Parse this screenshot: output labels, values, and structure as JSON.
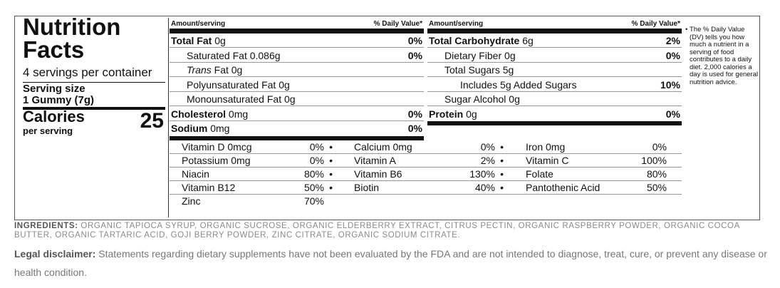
{
  "label": {
    "title": "Nutrition Facts",
    "servings": "4 servings per container",
    "serving_size_label": "Serving size",
    "serving_size": "1 Gummy (7g)",
    "calories_label": "Calories",
    "calories_sub": "per serving",
    "calories": 25,
    "columns": [
      {
        "amount_header": "Amount/serving",
        "dv_header": "% Daily Value*",
        "rows": [
          {
            "label": "Total Fat",
            "amount": "0g",
            "dv": "0%",
            "bold": true,
            "indent": 0
          },
          {
            "label": "Saturated Fat",
            "amount": "0.086g",
            "dv": "0%",
            "bold": false,
            "indent": 1
          },
          {
            "prefix_italic": "Trans",
            "label": "Fat",
            "amount": "0g",
            "bold": false,
            "indent": 1
          },
          {
            "label": "Polyunsaturated Fat",
            "amount": "0g",
            "bold": false,
            "indent": 1
          },
          {
            "label": "Monounsaturated Fat",
            "amount": "0g",
            "bold": false,
            "indent": 1
          },
          {
            "label": "Cholesterol",
            "amount": "0mg",
            "dv": "0%",
            "bold": true,
            "indent": 0
          },
          {
            "label": "Sodium",
            "amount": "0mg",
            "dv": "0%",
            "bold": true,
            "indent": 0
          }
        ]
      },
      {
        "amount_header": "Amount/serving",
        "dv_header": "% Daily Value*",
        "rows": [
          {
            "label": "Total Carbohydrate",
            "amount": "6g",
            "dv": "2%",
            "bold": true,
            "indent": 0
          },
          {
            "label": "Dietary Fiber",
            "amount": "0g",
            "dv": "0%",
            "bold": false,
            "indent": 1
          },
          {
            "label": "Total Sugars",
            "amount": "5g",
            "bold": false,
            "indent": 1
          },
          {
            "label": "Includes 5g Added Sugars",
            "dv": "10%",
            "bold": false,
            "indent": 2
          },
          {
            "label": "Sugar Alcohol",
            "amount": "0g",
            "bold": false,
            "indent": 1
          },
          {
            "label": "Protein",
            "amount": "0g",
            "dv": "0%",
            "bold": true,
            "indent": 0
          }
        ]
      }
    ],
    "footnote": "The % Daily Value (DV) tells you how much a nutrient in a serving of food contributes to a daily diet. 2,000 calories a day is used for general nutrition advice.",
    "vitamins": [
      [
        {
          "name": "Vitamin D 0mcg",
          "dv": "0%"
        },
        {
          "name": "Calcium 0mg",
          "dv": "0%"
        },
        {
          "name": "Iron 0mg",
          "dv": "0%"
        }
      ],
      [
        {
          "name": "Potassium 0mg",
          "dv": "0%"
        },
        {
          "name": "Vitamin A",
          "dv": "2%"
        },
        {
          "name": "Vitamin C",
          "dv": "100%"
        }
      ],
      [
        {
          "name": "Niacin",
          "dv": "80%"
        },
        {
          "name": "Vitamin B6",
          "dv": "130%"
        },
        {
          "name": "Folate",
          "dv": "80%"
        }
      ],
      [
        {
          "name": "Vitamin B12",
          "dv": "50%"
        },
        {
          "name": "Biotin",
          "dv": "40%"
        },
        {
          "name": "Pantothenic Acid",
          "dv": "50%"
        }
      ],
      [
        {
          "name": "Zinc",
          "dv": "70%"
        }
      ]
    ]
  },
  "ingredients": {
    "label": "INGREDIENTS:",
    "text": "ORGANIC TAPIOCA SYRUP, ORGANIC SUCROSE, ORGANIC ELDERBERRY EXTRACT, CITRUS PECTIN, ORGANIC RASPBERRY POWDER, ORGANIC COCOA BUTTER, ORGANIC TARTARIC ACID, GOJI BERRY POWDER, ZINC CITRATE, ORGANIC SODIUM CITRATE."
  },
  "disclaimer": {
    "label": "Legal disclaimer:",
    "text": "Statements regarding dietary supplements have not been evaluated by the FDA and are not intended to diagnose, treat, cure, or prevent any disease or health condition."
  }
}
